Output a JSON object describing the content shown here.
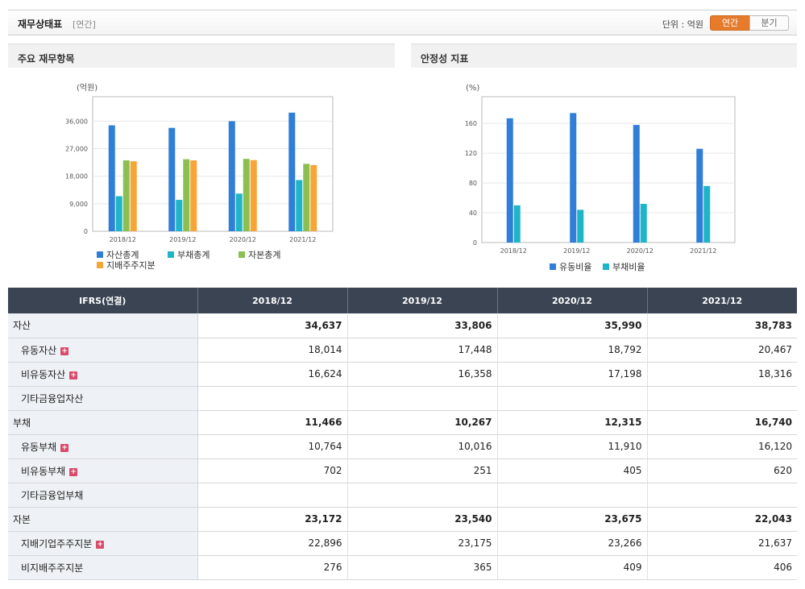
{
  "header": {
    "title": "재무상태표",
    "subtitle": "[연간]",
    "unit_label": "단위 : 억원",
    "toggle_annual": "연간",
    "toggle_quarter": "분기"
  },
  "panel_left": {
    "title": "주요 재무항목"
  },
  "panel_right": {
    "title": "안정성 지표"
  },
  "chart_data": [
    {
      "type": "bar",
      "unit": "(억원)",
      "categories": [
        "2018/12",
        "2019/12",
        "2020/12",
        "2021/12"
      ],
      "series": [
        {
          "name": "자산총계",
          "color": "#2f7ed8",
          "values": [
            34637,
            33806,
            35990,
            38783
          ]
        },
        {
          "name": "부채총계",
          "color": "#1fb5c9",
          "values": [
            11466,
            10267,
            12315,
            16740
          ]
        },
        {
          "name": "자본총계",
          "color": "#8cbf52",
          "values": [
            23172,
            23540,
            23675,
            22043
          ]
        },
        {
          "name": "지배주주지분",
          "color": "#f7a537",
          "values": [
            22896,
            23175,
            23266,
            21637
          ]
        }
      ],
      "yticks": [
        "0",
        "9,000",
        "18,000",
        "27,000",
        "36,000"
      ],
      "ylim": [
        0,
        44000
      ],
      "legend": "bottom"
    },
    {
      "type": "bar",
      "unit": "(%)",
      "categories": [
        "2018/12",
        "2019/12",
        "2020/12",
        "2021/12"
      ],
      "series": [
        {
          "name": "유동비율",
          "color": "#2f7ed8",
          "values": [
            167,
            174,
            158,
            126
          ]
        },
        {
          "name": "부채비율",
          "color": "#1fb5c9",
          "values": [
            50,
            44,
            52,
            76
          ]
        }
      ],
      "yticks": [
        "0",
        "40",
        "80",
        "120",
        "160"
      ],
      "ylim": [
        0,
        196
      ],
      "legend": "bottom"
    }
  ],
  "table": {
    "headers": [
      "IFRS(연결)",
      "2018/12",
      "2019/12",
      "2020/12",
      "2021/12"
    ],
    "rows": [
      {
        "label": "자산",
        "values": [
          "34,637",
          "33,806",
          "35,990",
          "38,783"
        ]
      },
      {
        "label": "유동자산",
        "values": [
          "18,014",
          "17,448",
          "18,792",
          "20,467"
        ]
      },
      {
        "label": "비유동자산",
        "values": [
          "16,624",
          "16,358",
          "17,198",
          "18,316"
        ]
      },
      {
        "label": "기타금융업자산",
        "values": [
          "",
          "",
          "",
          ""
        ]
      },
      {
        "label": "부채",
        "values": [
          "11,466",
          "10,267",
          "12,315",
          "16,740"
        ]
      },
      {
        "label": "유동부채",
        "values": [
          "10,764",
          "10,016",
          "11,910",
          "16,120"
        ]
      },
      {
        "label": "비유동부채",
        "values": [
          "702",
          "251",
          "405",
          "620"
        ]
      },
      {
        "label": "기타금융업부채",
        "values": [
          "",
          "",
          "",
          ""
        ]
      },
      {
        "label": "자본",
        "values": [
          "23,172",
          "23,540",
          "23,675",
          "22,043"
        ]
      },
      {
        "label": "지배기업주주지분",
        "values": [
          "22,896",
          "23,175",
          "23,266",
          "21,637"
        ]
      },
      {
        "label": "비지배주주지분",
        "values": [
          "276",
          "365",
          "409",
          "406"
        ]
      }
    ]
  }
}
